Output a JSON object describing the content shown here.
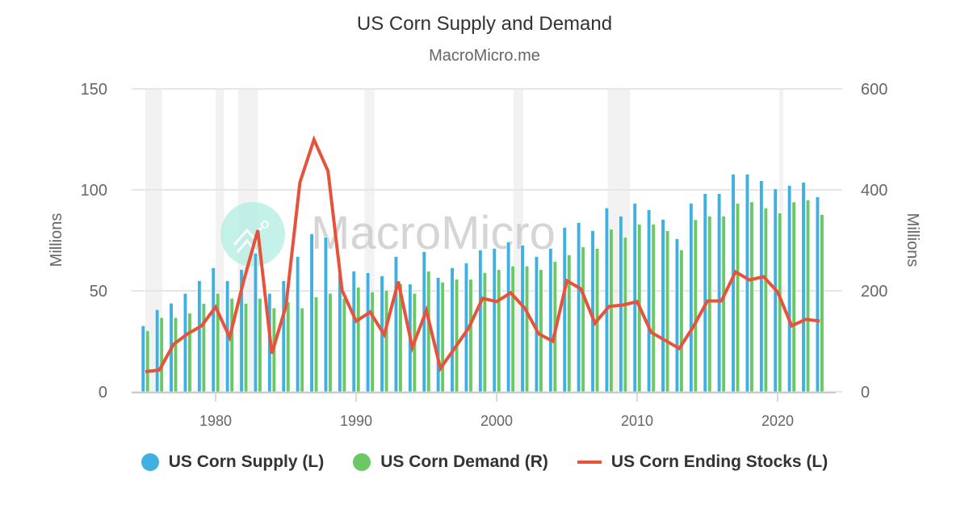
{
  "header": {
    "title": "US Corn Supply and Demand",
    "subtitle": "MacroMicro.me"
  },
  "watermark": {
    "text": "MacroMicro",
    "logo_color": "#b2ede0"
  },
  "legend": {
    "items": [
      {
        "label": "US Corn Supply (L)",
        "color": "#3fb1e0",
        "symbol": "circle"
      },
      {
        "label": "US Corn Demand (R)",
        "color": "#6cc865",
        "symbol": "circle"
      },
      {
        "label": "US Corn Ending Stocks (L)",
        "color": "#e8523a",
        "symbol": "line"
      }
    ]
  },
  "chart_data": {
    "type": "bar+line",
    "title": "US Corn Supply and Demand",
    "subtitle": "MacroMicro.me",
    "xlabel": "",
    "x_ticks": [
      1980,
      1990,
      2000,
      2010,
      2020
    ],
    "y_left": {
      "label": "Millions",
      "ticks": [
        0,
        50,
        100,
        150
      ],
      "range": [
        0,
        150
      ]
    },
    "y_right": {
      "label": "Millions",
      "ticks": [
        0,
        200,
        400,
        600
      ],
      "range": [
        0,
        600
      ]
    },
    "grid": true,
    "legend_position": "bottom",
    "recession_bands": [
      [
        1975.0,
        1976.2
      ],
      [
        1980.0,
        1980.6
      ],
      [
        1981.6,
        1983.0
      ],
      [
        1990.6,
        1991.3
      ],
      [
        2001.2,
        2001.9
      ],
      [
        2007.9,
        2009.5
      ],
      [
        2020.1,
        2020.4
      ]
    ],
    "x": [
      1975,
      1976,
      1977,
      1978,
      1979,
      1980,
      1981,
      1982,
      1983,
      1984,
      1985,
      1986,
      1987,
      1988,
      1989,
      1990,
      1991,
      1992,
      1993,
      1994,
      1995,
      1996,
      1997,
      1998,
      1999,
      2000,
      2001,
      2002,
      2003,
      2004,
      2005,
      2006,
      2007,
      2008,
      2009,
      2010,
      2011,
      2012,
      2013,
      2014,
      2015,
      2016,
      2017,
      2018,
      2019,
      2020,
      2021,
      2022,
      2023
    ],
    "series": [
      {
        "name": "US Corn Supply (L)",
        "type": "bar",
        "axis": "left",
        "color": "#3fb1e0",
        "values": [
          32.7,
          40.7,
          43.9,
          48.7,
          55.0,
          61.4,
          55.0,
          60.6,
          68.6,
          48.7,
          55.0,
          67.0,
          78.2,
          76.6,
          58.2,
          59.8,
          59.0,
          57.4,
          67.0,
          53.4,
          69.4,
          56.6,
          61.4,
          63.8,
          70.2,
          71.0,
          74.2,
          72.6,
          67.0,
          71.0,
          81.4,
          83.8,
          79.8,
          91.0,
          87.0,
          93.3,
          90.1,
          85.4,
          75.8,
          93.3,
          98.1,
          98.1,
          107.7,
          107.7,
          104.5,
          100.5,
          102.1,
          103.7,
          96.5
        ]
      },
      {
        "name": "US Corn Demand (R)",
        "type": "bar",
        "axis": "right",
        "color": "#6cc865",
        "values": [
          121,
          147,
          147,
          156,
          175,
          195,
          185,
          175,
          185,
          166,
          178,
          166,
          188,
          195,
          185,
          207,
          198,
          201,
          214,
          195,
          239,
          217,
          223,
          223,
          236,
          242,
          249,
          249,
          242,
          258,
          271,
          287,
          284,
          322,
          306,
          332,
          332,
          319,
          281,
          341,
          348,
          348,
          373,
          376,
          364,
          354,
          376,
          380,
          351
        ]
      },
      {
        "name": "US Corn Ending Stocks (L)",
        "type": "line",
        "axis": "left",
        "color": "#e8523a",
        "values": [
          10.0,
          10.8,
          23.5,
          28.7,
          32.7,
          42.0,
          27.0,
          55.0,
          80.0,
          19.0,
          42.3,
          103.7,
          124.9,
          109.3,
          50.3,
          35.0,
          39.5,
          28.3,
          54.6,
          22.0,
          40.3,
          11.6,
          21.5,
          31.5,
          46.3,
          44.7,
          49.0,
          41.5,
          28.7,
          25.1,
          55.0,
          51.0,
          34.0,
          42.3,
          43.0,
          44.7,
          29.5,
          25.5,
          21.5,
          32.3,
          45.0,
          45.0,
          59.4,
          55.4,
          57.0,
          49.5,
          32.7,
          35.9,
          35.1
        ]
      }
    ]
  }
}
